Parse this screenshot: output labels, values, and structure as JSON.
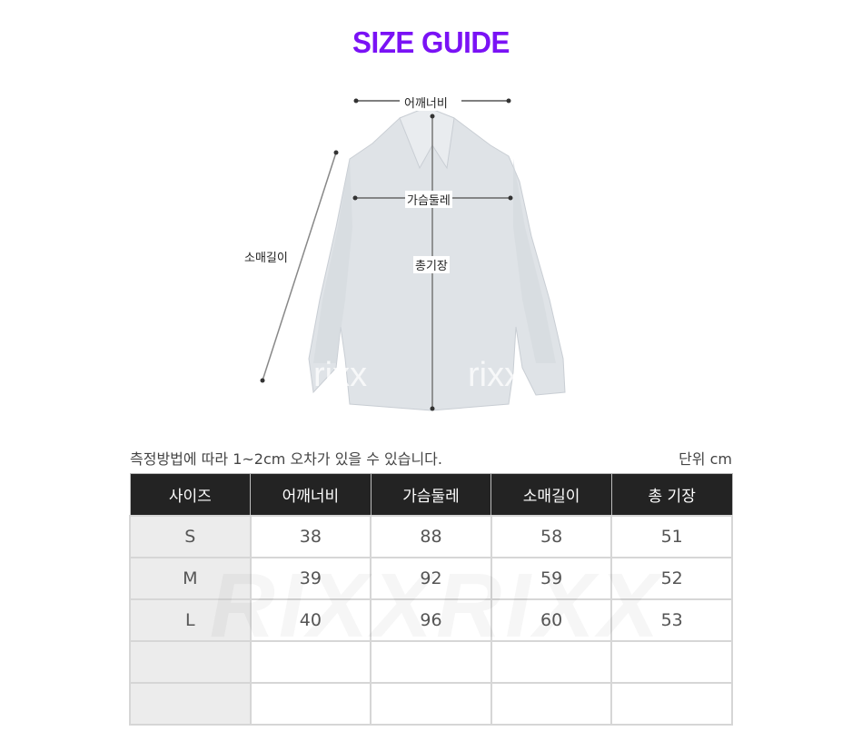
{
  "title": "SIZE GUIDE",
  "diagram": {
    "shoulder_label": "어깨너비",
    "chest_label": "가슴둘레",
    "sleeve_label": "소매길이",
    "length_label": "총기장",
    "watermark": "rixx"
  },
  "note": "측정방법에 따라 1~2cm 오차가 있을 수 있습니다.",
  "unit": "단위 cm",
  "table": {
    "headers": [
      "사이즈",
      "어깨너비",
      "가슴둘레",
      "소매길이",
      "총 기장"
    ],
    "rows": [
      [
        "S",
        "38",
        "88",
        "58",
        "51"
      ],
      [
        "M",
        "39",
        "92",
        "59",
        "52"
      ],
      [
        "L",
        "40",
        "96",
        "60",
        "53"
      ],
      [
        "",
        "",
        "",
        "",
        ""
      ],
      [
        "",
        "",
        "",
        "",
        ""
      ]
    ],
    "watermark": "RIXXRIXX"
  },
  "colors": {
    "title": "#7a12f5",
    "header_bg": "#232323",
    "size_col_bg": "#ececec"
  }
}
